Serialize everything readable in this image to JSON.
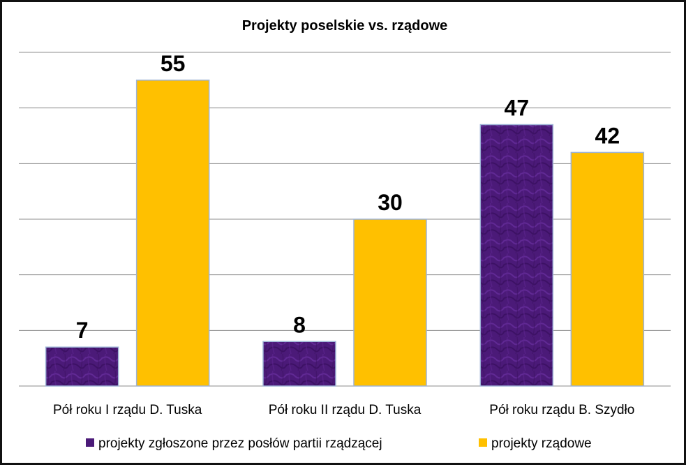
{
  "chart_data": {
    "type": "bar",
    "title": "Projekty poselskie vs. rządowe",
    "categories": [
      "Pół roku I rządu D. Tuska",
      "Pół roku II rządu D. Tuska",
      "Pół roku rządu B. Szydło"
    ],
    "series": [
      {
        "name": "projekty zgłoszone przez posłów partii rządzącej",
        "values": [
          7,
          8,
          47
        ],
        "color": "#4b1a78"
      },
      {
        "name": "projekty rządowe",
        "values": [
          55,
          30,
          42
        ],
        "color": "#ffc000"
      }
    ],
    "ylim": [
      0,
      60
    ],
    "yticks": [
      0,
      10,
      20,
      30,
      40,
      50,
      60
    ],
    "grid": true,
    "legend_position": "bottom",
    "xlabel": "",
    "ylabel": ""
  }
}
